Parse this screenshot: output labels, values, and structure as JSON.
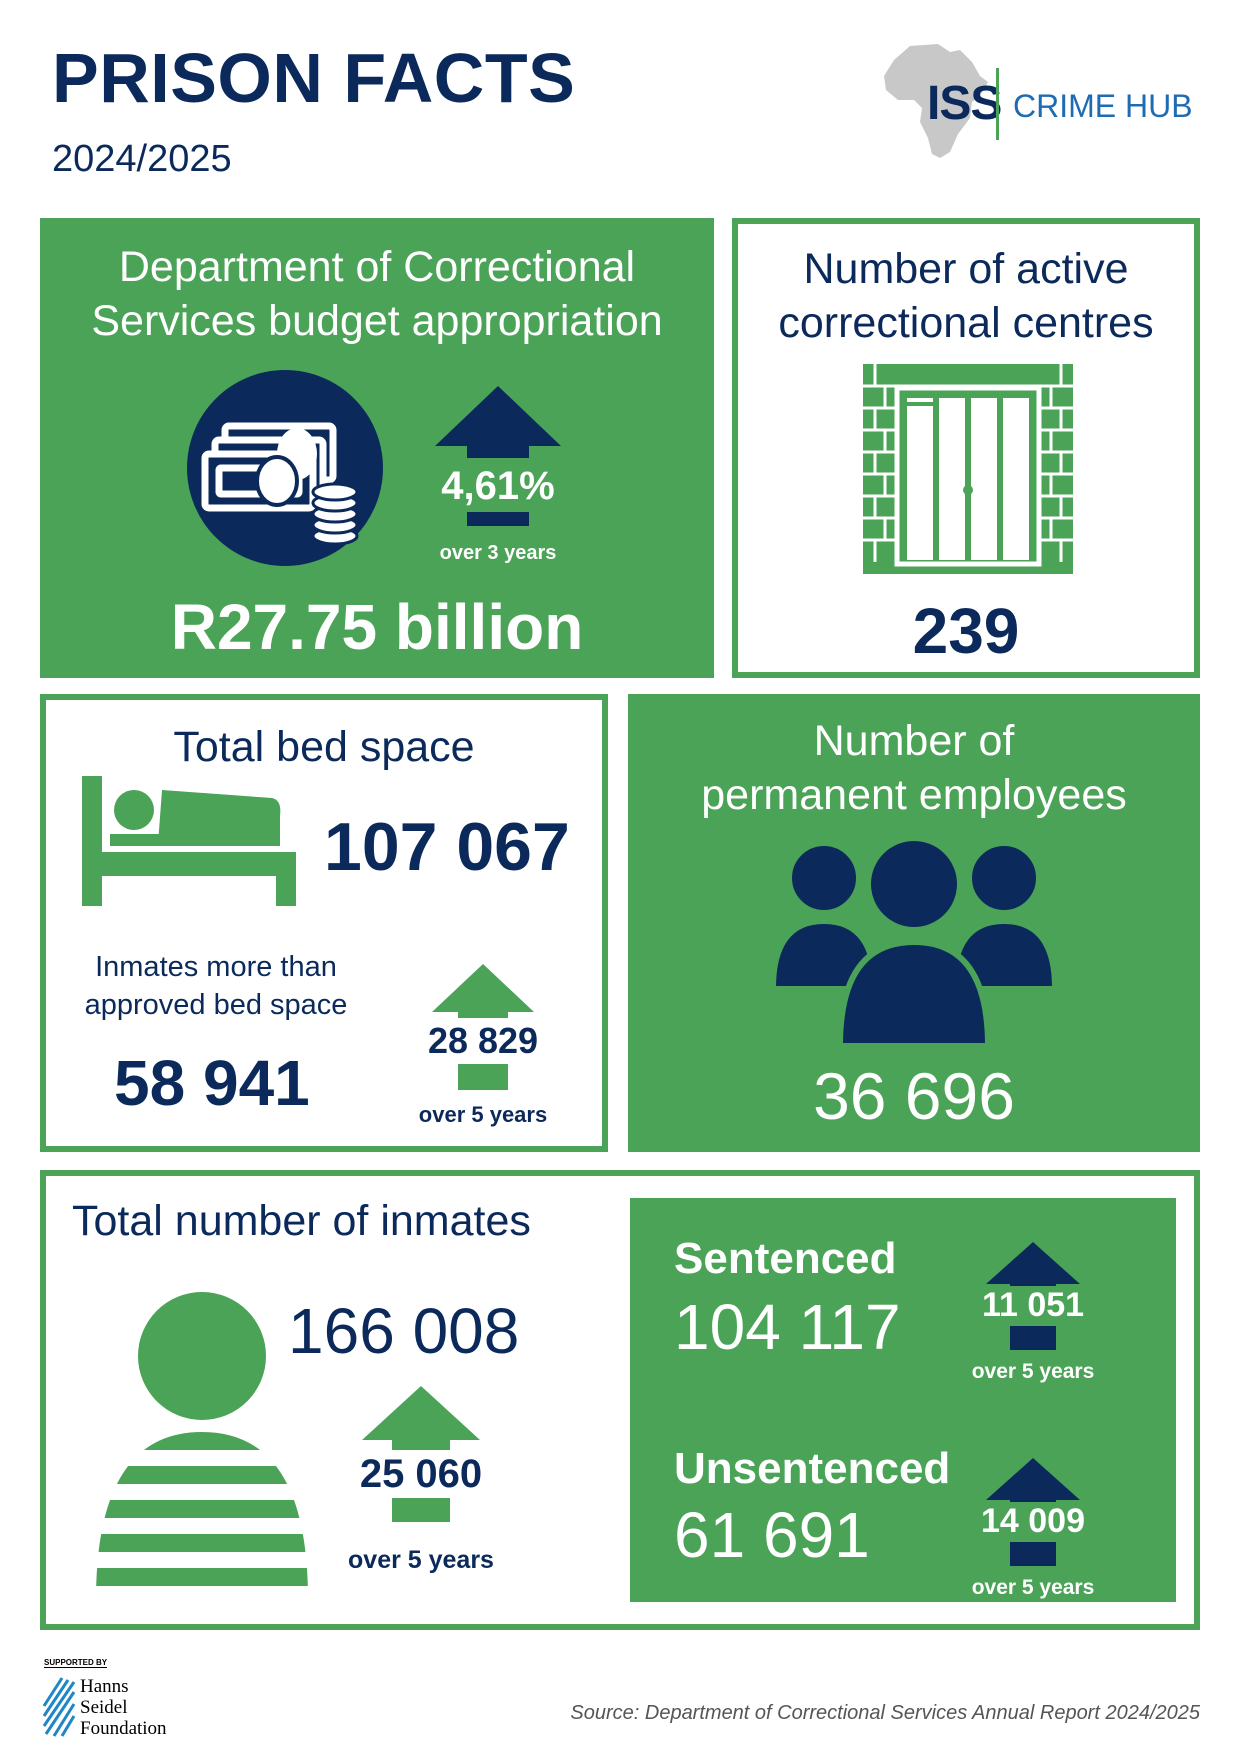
{
  "header": {
    "title": "PRISON FACTS",
    "subtitle": "2024/2025"
  },
  "logo": {
    "iss": "ISS",
    "crime_hub": "CRIME HUB"
  },
  "budget": {
    "title_line1": "Department of Correctional",
    "title_line2": "Services budget appropriation",
    "value": "R27.75 billion",
    "change": "4,61%",
    "change_period": "over 3 years",
    "icon": "money-icon"
  },
  "centres": {
    "title_line1": "Number of active",
    "title_line2": "correctional centres",
    "value": "239",
    "icon": "prison-door-icon"
  },
  "beds": {
    "title": "Total bed space",
    "value": "107 067",
    "over_label_line1": "Inmates more than",
    "over_label_line2": "approved bed space",
    "over_value": "58 941",
    "change": "28 829",
    "change_period": "over 5 years",
    "icon": "bed-icon"
  },
  "employees": {
    "title_line1": "Number of",
    "title_line2": "permanent employees",
    "value": "36 696",
    "icon": "people-group-icon"
  },
  "inmates": {
    "title": "Total number of inmates",
    "value": "166 008",
    "change": "25 060",
    "change_period": "over 5 years",
    "icon": "inmate-icon"
  },
  "sentenced": {
    "label": "Sentenced",
    "value": "104 117",
    "change": "11 051",
    "change_period": "over 5 years"
  },
  "unsentenced": {
    "label": "Unsentenced",
    "value": "61 691",
    "change": "14 009",
    "change_period": "over 5 years"
  },
  "footer": {
    "supported_by": "SUPPORTED BY",
    "foundation_line1": "Hanns",
    "foundation_line2": "Seidel",
    "foundation_line3": "Foundation",
    "source": "Source: Department of Correctional Services Annual Report 2024/2025"
  },
  "colors": {
    "green": "#4aa356",
    "navy": "#0b2a5b",
    "white": "#ffffff"
  }
}
